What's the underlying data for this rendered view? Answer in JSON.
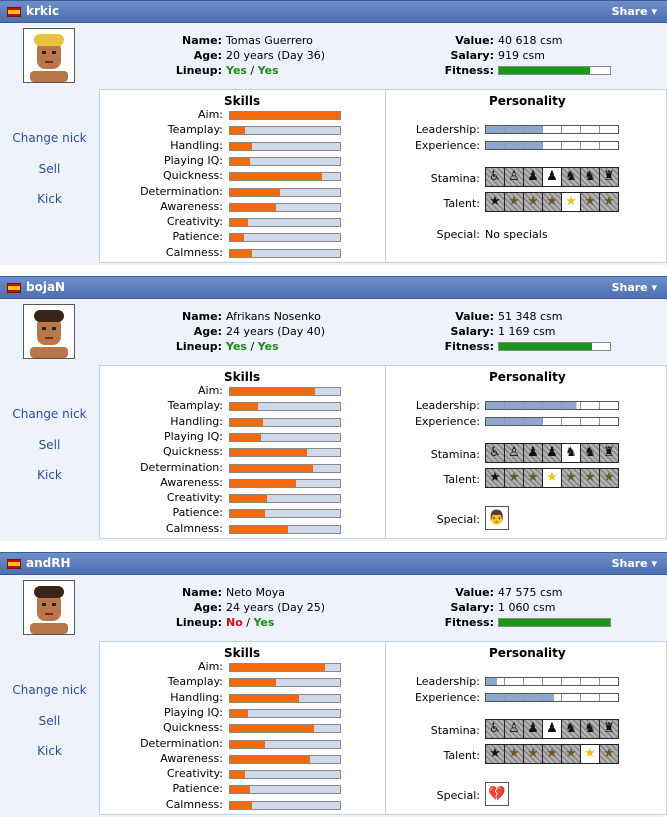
{
  "labels": {
    "share": "Share ▾",
    "name": "Name:",
    "age": "Age:",
    "lineup": "Lineup:",
    "value": "Value:",
    "salary": "Salary:",
    "fitness": "Fitness:",
    "skills": "Skills",
    "personality": "Personality",
    "leadership": "Leadership:",
    "experience": "Experience:",
    "stamina": "Stamina:",
    "talent": "Talent:",
    "special": "Special:",
    "change_nick": "Change nick",
    "sell": "Sell",
    "kick": "Kick",
    "lineup_sep": " / "
  },
  "skill_names": [
    "Aim:",
    "Teamplay:",
    "Handling:",
    "Playing IQ:",
    "Quickness:",
    "Determination:",
    "Awareness:",
    "Creativity:",
    "Patience:",
    "Calmness:"
  ],
  "colors": {
    "header": "#5a7bbd",
    "skill_fill": "#f26a0c",
    "fitness": "#1b961b",
    "yes": "#1a8a1a",
    "no": "#d01010",
    "link": "#2a4f9a"
  },
  "players": [
    {
      "nick": "krkic",
      "flag": "spain-flag",
      "name": "Tomas Guerrero",
      "age": "20 years (Day 36)",
      "lineup_a": "Yes",
      "lineup_b": "Yes",
      "value": "40 618 csm",
      "salary": "919 csm",
      "fitness": 0.82,
      "skills": [
        1.0,
        0.14,
        0.2,
        0.18,
        0.84,
        0.45,
        0.42,
        0.16,
        0.13,
        0.2
      ],
      "leadership_segments": [
        1,
        1,
        1,
        0,
        0,
        0,
        0
      ],
      "experience_segments": [
        1,
        1,
        1,
        0,
        0,
        0,
        0
      ],
      "stamina_level": 3,
      "talent_level": 4,
      "special": "No specials",
      "special_icon": ""
    },
    {
      "nick": "bojaN",
      "flag": "serbia-flag",
      "name": "Afrikans Nosenko",
      "age": "24 years (Day 40)",
      "lineup_a": "Yes",
      "lineup_b": "Yes",
      "value": "51 348 csm",
      "salary": "1 169 csm",
      "fitness": 0.84,
      "skills": [
        0.77,
        0.25,
        0.3,
        0.28,
        0.7,
        0.75,
        0.6,
        0.34,
        0.32,
        0.53
      ],
      "leadership_segments": [
        1,
        1,
        1,
        1,
        0.8,
        0,
        0
      ],
      "experience_segments": [
        1,
        1,
        1,
        0,
        0,
        0,
        0
      ],
      "stamina_level": 4,
      "talent_level": 3,
      "special": "",
      "special_icon": "teacher-icon"
    },
    {
      "nick": "andRH",
      "flag": "spain-flag",
      "name": "Neto Moya",
      "age": "24 years (Day 25)",
      "lineup_a": "No",
      "lineup_b": "Yes",
      "value": "47 575 csm",
      "salary": "1 060 csm",
      "fitness": 1.0,
      "skills": [
        0.86,
        0.42,
        0.63,
        0.16,
        0.76,
        0.32,
        0.73,
        0.14,
        0.18,
        0.2
      ],
      "leadership_segments": [
        0.6,
        0,
        0,
        0,
        0,
        0,
        0
      ],
      "experience_segments": [
        1,
        1,
        1,
        0.6,
        0,
        0,
        0
      ],
      "stamina_level": 3,
      "talent_level": 5,
      "special": "",
      "special_icon": "broken-heart-icon"
    }
  ]
}
